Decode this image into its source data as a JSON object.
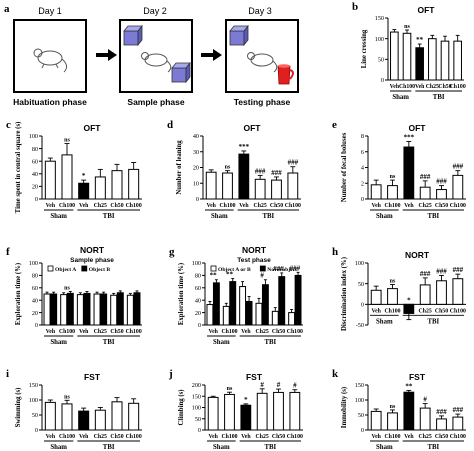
{
  "schematic": {
    "letter": "a",
    "days": [
      "Day 1",
      "Day 2",
      "Day 3"
    ],
    "phases": [
      "Habituation phase",
      "Sample phase",
      "Testing phase"
    ],
    "icons": [
      "mouse-icon",
      "cube-object-icon",
      "mug-object-icon",
      "arrow-right-icon"
    ]
  },
  "colors": {
    "tbi_veh": "#000000",
    "bar": "#ffffff",
    "stroke": "#000000",
    "box": "#d9d9d9",
    "cube": "#7b7bd6",
    "mug": "#e02020"
  },
  "chart_data": [
    {
      "panel": "b",
      "type": "bar",
      "title": "OFT",
      "ylabel": "Line crossing",
      "ylim": [
        0,
        150
      ],
      "yticks": [
        0,
        50,
        100,
        150
      ],
      "categories": [
        "Veh",
        "Ch100",
        "Veh",
        "Ch25",
        "Ch50",
        "Ch100"
      ],
      "groups": [
        {
          "label": "Sham",
          "span": [
            0,
            1
          ]
        },
        {
          "label": "TBI",
          "span": [
            2,
            5
          ]
        }
      ],
      "values": [
        116,
        113,
        78,
        100,
        94,
        94
      ],
      "errors": [
        6,
        8,
        9,
        8,
        12,
        14
      ],
      "filled": [
        false,
        false,
        true,
        false,
        false,
        false
      ],
      "annotations": [
        "",
        "ns",
        "**",
        "",
        "",
        ""
      ]
    },
    {
      "panel": "c",
      "type": "bar",
      "title": "OFT",
      "ylabel": "Time spent in central square (s)",
      "ylim": [
        0,
        100
      ],
      "yticks": [
        0,
        20,
        40,
        60,
        80,
        100
      ],
      "categories": [
        "Veh",
        "Ch100",
        "Veh",
        "Ch25",
        "Ch50",
        "Ch100"
      ],
      "groups": [
        {
          "label": "Sham",
          "span": [
            0,
            1
          ]
        },
        {
          "label": "TBI",
          "span": [
            2,
            5
          ]
        }
      ],
      "values": [
        60,
        70,
        25,
        35,
        45,
        47
      ],
      "errors": [
        5,
        18,
        5,
        12,
        10,
        11
      ],
      "filled": [
        false,
        false,
        true,
        false,
        false,
        false
      ],
      "annotations": [
        "",
        "ns",
        "*",
        "",
        "",
        ""
      ]
    },
    {
      "panel": "d",
      "type": "bar",
      "title": "OFT",
      "ylabel": "Number of leaning",
      "ylim": [
        0,
        40
      ],
      "yticks": [
        0,
        10,
        20,
        30,
        40
      ],
      "categories": [
        "Veh",
        "Ch100",
        "Veh",
        "Ch25",
        "Ch50",
        "Ch100"
      ],
      "groups": [
        {
          "label": "Sham",
          "span": [
            0,
            1
          ]
        },
        {
          "label": "TBI",
          "span": [
            2,
            5
          ]
        }
      ],
      "values": [
        17,
        16.5,
        28.5,
        12.5,
        12,
        16.5
      ],
      "errors": [
        1.5,
        1.5,
        2,
        2.5,
        2,
        4
      ],
      "filled": [
        false,
        false,
        true,
        false,
        false,
        false
      ],
      "annotations": [
        "",
        "ns",
        "***",
        "###",
        "###",
        "###"
      ]
    },
    {
      "panel": "e",
      "type": "bar",
      "title": "OFT",
      "ylabel": "Number of fecal boluses",
      "ylim": [
        0,
        8
      ],
      "yticks": [
        0,
        2,
        4,
        6,
        8
      ],
      "categories": [
        "Veh",
        "Ch100",
        "Veh",
        "Ch25",
        "Ch50",
        "Ch100"
      ],
      "groups": [
        {
          "label": "Sham",
          "span": [
            0,
            1
          ]
        },
        {
          "label": "TBI",
          "span": [
            2,
            5
          ]
        }
      ],
      "values": [
        1.8,
        1.7,
        6.6,
        1.5,
        1.2,
        3
      ],
      "errors": [
        0.6,
        0.7,
        0.7,
        0.8,
        0.5,
        0.6
      ],
      "filled": [
        false,
        false,
        true,
        false,
        false,
        false
      ],
      "annotations": [
        "",
        "ns",
        "***",
        "###",
        "###",
        "###"
      ]
    },
    {
      "panel": "f",
      "type": "bar",
      "title": "NORT",
      "subtitle": "Sample phase",
      "ylabel": "Exploration time (%)",
      "ylim": [
        0,
        100
      ],
      "yticks": [
        0,
        20,
        40,
        60,
        80,
        100
      ],
      "categories": [
        "Veh",
        "Ch100",
        "Veh",
        "Ch25",
        "Ch50",
        "Ch100"
      ],
      "groups": [
        {
          "label": "Sham",
          "span": [
            0,
            1
          ]
        },
        {
          "label": "TBI",
          "span": [
            2,
            5
          ]
        }
      ],
      "legend": [
        "Object A",
        "Object B"
      ],
      "series": [
        {
          "name": "Object A",
          "values": [
            50,
            49,
            49,
            50,
            48,
            48
          ],
          "errors": [
            3,
            3,
            3,
            3,
            3,
            3
          ],
          "filled": false
        },
        {
          "name": "Object B",
          "values": [
            50,
            51,
            51,
            50,
            52,
            52
          ],
          "errors": [
            3,
            3,
            3,
            3,
            3,
            3
          ],
          "filled": true
        }
      ],
      "annotations": [
        "",
        "ns",
        "",
        "",
        "",
        ""
      ]
    },
    {
      "panel": "g",
      "type": "bar",
      "title": "NORT",
      "subtitle": "Test phase",
      "ylabel": "Exploration time (%)",
      "ylim": [
        0,
        100
      ],
      "yticks": [
        0,
        20,
        40,
        60,
        80,
        100
      ],
      "categories": [
        "Veh",
        "Ch100",
        "Veh",
        "Ch25",
        "Ch50",
        "Ch100"
      ],
      "groups": [
        {
          "label": "Sham",
          "span": [
            0,
            1
          ]
        },
        {
          "label": "TBI",
          "span": [
            2,
            5
          ]
        }
      ],
      "legend": [
        "Object A or B",
        "Novel object"
      ],
      "series": [
        {
          "name": "Object A or B",
          "values": [
            33,
            30,
            62,
            35,
            22,
            20
          ],
          "errors": [
            5,
            5,
            8,
            8,
            6,
            5
          ],
          "filled": false
        },
        {
          "name": "Novel object",
          "values": [
            68,
            70,
            38,
            65,
            78,
            80
          ],
          "errors": [
            5,
            5,
            8,
            8,
            6,
            5
          ],
          "filled": true
        }
      ],
      "annotations": [
        "**",
        "**",
        "",
        "#",
        "###",
        "###"
      ]
    },
    {
      "panel": "h",
      "type": "bar",
      "title": "NORT",
      "ylabel": "Discrimination index (%)",
      "ylim": [
        -50,
        100
      ],
      "yticks": [
        -50,
        0,
        50,
        100
      ],
      "categories": [
        "Veh",
        "Ch100",
        "Veh",
        "Ch25",
        "Ch50",
        "Ch100"
      ],
      "groups": [
        {
          "label": "Sham",
          "span": [
            0,
            1
          ]
        },
        {
          "label": "TBI",
          "span": [
            2,
            5
          ]
        }
      ],
      "values": [
        34,
        38,
        -22,
        47,
        57,
        62
      ],
      "errors": [
        10,
        10,
        15,
        17,
        13,
        11
      ],
      "filled": [
        false,
        false,
        true,
        false,
        false,
        false
      ],
      "annotations": [
        "",
        "ns",
        "*",
        "###",
        "###",
        "###"
      ]
    },
    {
      "panel": "i",
      "type": "bar",
      "title": "FST",
      "ylabel": "Swimming (s)",
      "ylim": [
        0,
        150
      ],
      "yticks": [
        0,
        50,
        100,
        150
      ],
      "categories": [
        "Veh",
        "Ch100",
        "Veh",
        "Ch25",
        "Ch50",
        "Ch100"
      ],
      "groups": [
        {
          "label": "Sham",
          "span": [
            0,
            1
          ]
        },
        {
          "label": "TBI",
          "span": [
            2,
            5
          ]
        }
      ],
      "values": [
        92,
        87,
        63,
        66,
        94,
        89
      ],
      "errors": [
        8,
        12,
        10,
        9,
        14,
        15
      ],
      "filled": [
        false,
        false,
        true,
        false,
        false,
        false
      ],
      "annotations": [
        "",
        "ns",
        "",
        "",
        "",
        ""
      ]
    },
    {
      "panel": "j",
      "type": "bar",
      "title": "FST",
      "ylabel": "Climbing (s)",
      "ylim": [
        0,
        200
      ],
      "yticks": [
        0,
        50,
        100,
        150,
        200
      ],
      "categories": [
        "Veh",
        "Ch100",
        "Veh",
        "Ch25",
        "Ch50",
        "Ch100"
      ],
      "groups": [
        {
          "label": "Sham",
          "span": [
            0,
            1
          ]
        },
        {
          "label": "TBI",
          "span": [
            2,
            5
          ]
        }
      ],
      "values": [
        145,
        158,
        110,
        163,
        167,
        167
      ],
      "errors": [
        5,
        10,
        6,
        20,
        15,
        12
      ],
      "filled": [
        false,
        false,
        true,
        false,
        false,
        false
      ],
      "annotations": [
        "",
        "ns",
        "*",
        "#",
        "#",
        "#"
      ]
    },
    {
      "panel": "k",
      "type": "bar",
      "title": "FST",
      "ylabel": "Immobility (s)",
      "ylim": [
        0,
        150
      ],
      "yticks": [
        0,
        50,
        100,
        150
      ],
      "categories": [
        "Veh",
        "Ch100",
        "Veh",
        "Ch25",
        "Ch50",
        "Ch100"
      ],
      "groups": [
        {
          "label": "Sham",
          "span": [
            0,
            1
          ]
        },
        {
          "label": "TBI",
          "span": [
            2,
            5
          ]
        }
      ],
      "values": [
        62,
        57,
        126,
        73,
        37,
        43
      ],
      "errors": [
        8,
        10,
        6,
        15,
        10,
        10
      ],
      "filled": [
        false,
        false,
        true,
        false,
        false,
        false
      ],
      "annotations": [
        "",
        "ns",
        "**",
        "#",
        "###",
        "###"
      ]
    }
  ]
}
